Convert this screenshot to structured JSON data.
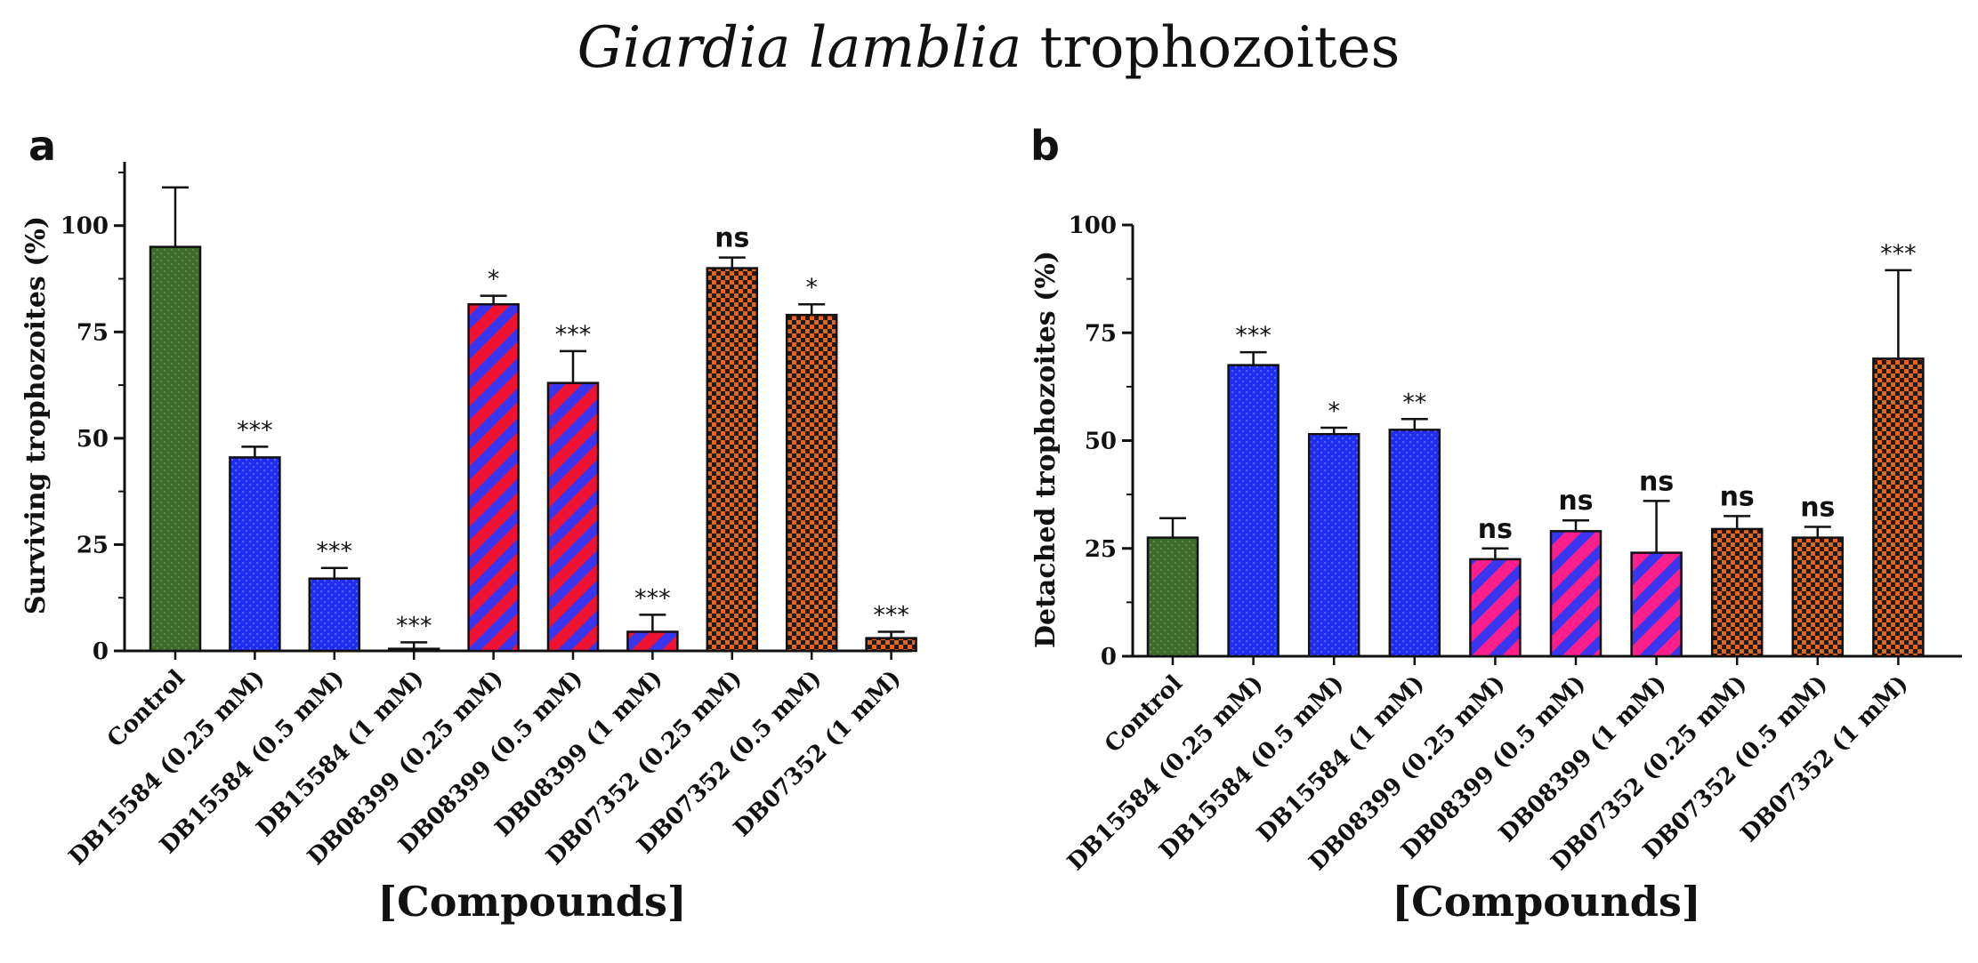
{
  "figure": {
    "title_italic": "Giardia lamblia",
    "title_plain": " trophozoites"
  },
  "colors": {
    "control": "#3f6b2c",
    "db15584": "#1f2cf2",
    "db08399_a": "#f01232",
    "db08399_b": "#ff1f8a",
    "db08399_stripe": "#3a35ee",
    "db07352": "#e8641c",
    "db07352_check": "#1b1b1b",
    "axis": "#111111"
  },
  "chart_data": [
    {
      "type": "bar",
      "panel": "a",
      "title": "",
      "ylabel": "Surviving trophozoites (%)",
      "xlabel": "[Compounds]",
      "ylim": [
        0,
        115
      ],
      "yticks": [
        0,
        25,
        50,
        75,
        100
      ],
      "grid": false,
      "categories": [
        "Control",
        "DB15584 (0.25 mM)",
        "DB15584 (0.5 mM)",
        "DB15584 (1 mM)",
        "DB08399 (0.25 mM)",
        "DB08399 (0.5  mM)",
        "DB08399 (1 mM)",
        "DB07352 (0.25 mM)",
        "DB07352 (0.5  mM)",
        "DB07352 (1 mM)"
      ],
      "values": [
        95,
        45.5,
        17,
        0.5,
        81.5,
        63,
        4.5,
        90,
        79,
        3
      ],
      "errors": [
        14,
        2.5,
        2.5,
        1.5,
        2,
        7.5,
        4,
        2.5,
        2.5,
        1.5
      ],
      "significance": [
        "",
        "***",
        "***",
        "***",
        "*",
        "***",
        "***",
        "ns",
        "*",
        "***"
      ],
      "fills": [
        "control",
        "db15584",
        "db15584",
        "db15584",
        "db08399_a",
        "db08399_a",
        "db08399_a",
        "db07352",
        "db07352",
        "db07352"
      ]
    },
    {
      "type": "bar",
      "panel": "b",
      "title": "",
      "ylabel": "Detached trophozoites (%)",
      "xlabel": "[Compounds]",
      "ylim": [
        0,
        100
      ],
      "yticks": [
        0,
        25,
        50,
        75,
        100
      ],
      "grid": false,
      "categories": [
        "Control",
        "DB15584 (0.25 mM)",
        "DB15584 (0.5 mM)",
        "DB15584 (1 mM)",
        "DB08399 (0.25 mM)",
        "DB08399 (0.5  mM)",
        "DB08399 (1 mM)",
        "DB07352 (0.25 mM)",
        "DB07352 (0.5  mM)",
        "DB07352 (1 mM)"
      ],
      "values": [
        27.5,
        67.5,
        51.5,
        52.5,
        22.5,
        29,
        24,
        29.5,
        27.5,
        69
      ],
      "errors": [
        4.5,
        3,
        1.5,
        2.5,
        2.5,
        2.5,
        12,
        3,
        2.5,
        20.5
      ],
      "significance": [
        "",
        "***",
        "*",
        "**",
        "ns",
        "ns",
        "ns",
        "ns",
        "ns",
        "***"
      ],
      "fills": [
        "control",
        "db15584",
        "db15584",
        "db15584",
        "db08399_b",
        "db08399_b",
        "db08399_b",
        "db07352",
        "db07352",
        "db07352"
      ]
    }
  ]
}
